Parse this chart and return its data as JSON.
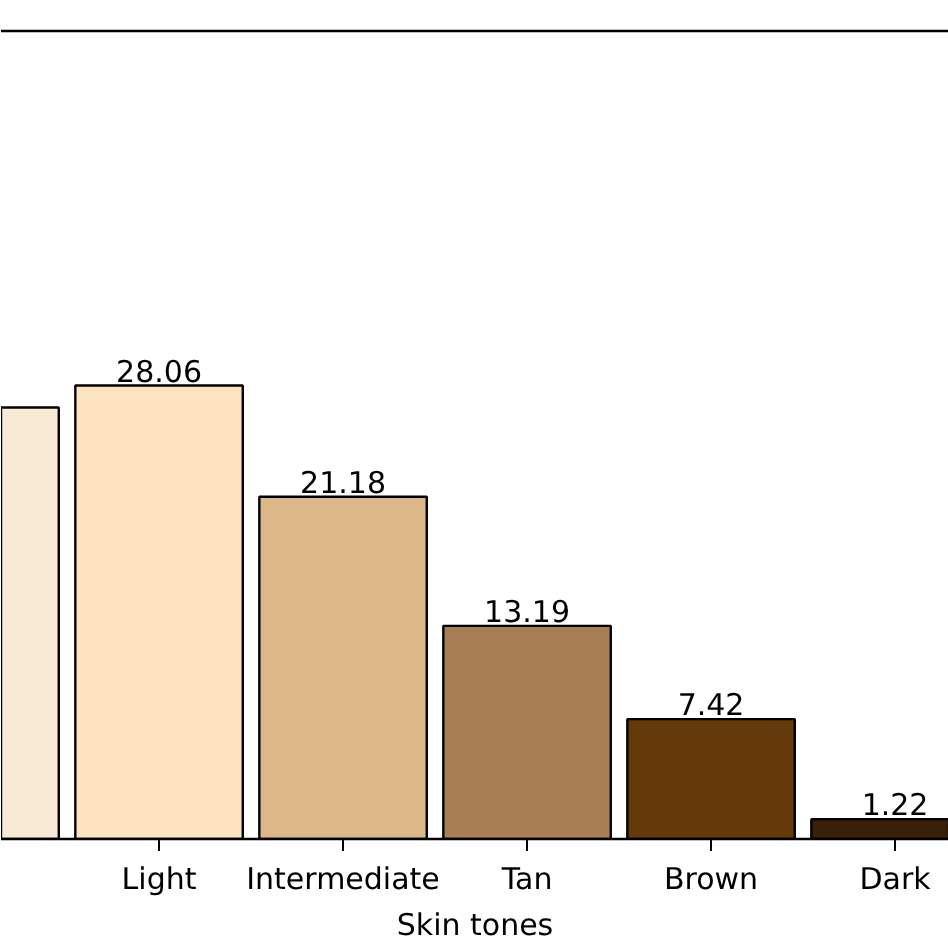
{
  "chart_data": {
    "type": "bar",
    "xlabel": "Skin tones",
    "categories": [
      null,
      "Light",
      "Intermediate",
      "Tan",
      "Brown",
      "Dark"
    ],
    "values": [
      26.7,
      28.06,
      21.18,
      13.19,
      7.42,
      1.22
    ],
    "value_labels": [
      null,
      "28.06",
      "21.18",
      "13.19",
      "7.42",
      "1.22"
    ],
    "colors": [
      "#f9ead6",
      "#fde3c0",
      "#dcb888",
      "#a87f55",
      "#643a0a",
      "#3a2008"
    ],
    "ylim": [
      0,
      50
    ],
    "tick_labels": "x"
  }
}
